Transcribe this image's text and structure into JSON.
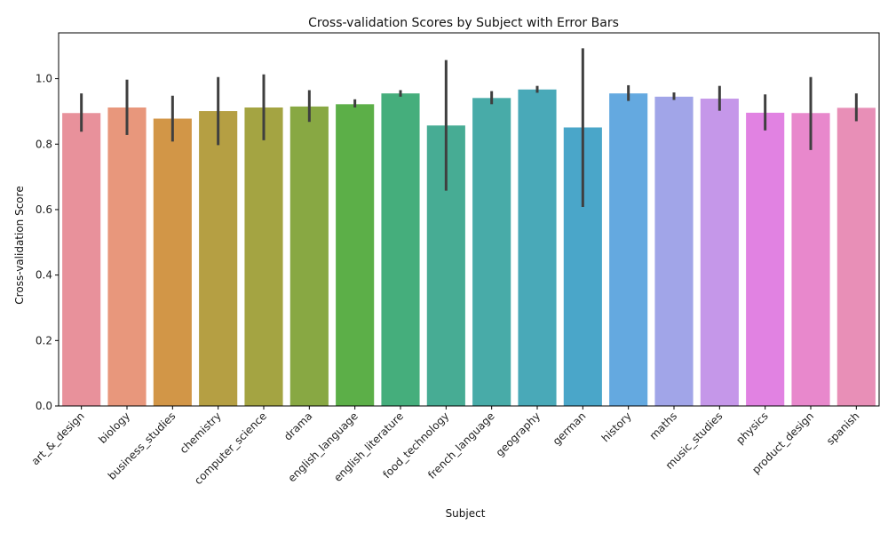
{
  "chart_data": {
    "type": "bar",
    "title": "Cross-validation Scores by Subject with Error Bars",
    "xlabel": "Subject",
    "ylabel": "Cross-validation Score",
    "ylim": [
      0,
      1.14
    ],
    "yticks": [
      0.0,
      0.2,
      0.4,
      0.6,
      0.8,
      1.0
    ],
    "ytick_labels": [
      "0.0",
      "0.2",
      "0.4",
      "0.6",
      "0.8",
      "1.0"
    ],
    "grid": false,
    "categories": [
      "art_&_design",
      "biology",
      "business_studies",
      "chemistry",
      "computer_science",
      "drama",
      "english_language",
      "english_literature",
      "food_technology",
      "french_language",
      "geography",
      "german",
      "history",
      "maths",
      "music_studies",
      "physics",
      "product_design",
      "spanish"
    ],
    "values": [
      0.895,
      0.912,
      0.878,
      0.901,
      0.912,
      0.915,
      0.922,
      0.955,
      0.857,
      0.941,
      0.967,
      0.851,
      0.955,
      0.945,
      0.939,
      0.896,
      0.895,
      0.911
    ],
    "error_low": [
      0.838,
      0.828,
      0.808,
      0.797,
      0.812,
      0.868,
      0.912,
      0.945,
      0.658,
      0.922,
      0.957,
      0.608,
      0.932,
      0.935,
      0.902,
      0.842,
      0.782,
      0.87
    ],
    "error_high": [
      0.955,
      0.997,
      0.948,
      1.005,
      1.013,
      0.965,
      0.937,
      0.965,
      1.057,
      0.962,
      0.978,
      1.093,
      0.98,
      0.958,
      0.978,
      0.952,
      1.005,
      0.955
    ],
    "colors": [
      "#e8919b",
      "#e8977c",
      "#d29647",
      "#b59f43",
      "#a4a442",
      "#88a843",
      "#5caf48",
      "#45ae7c",
      "#47ac94",
      "#48aba8",
      "#49a9b8",
      "#4aa6c9",
      "#64a9e0",
      "#a1a5e8",
      "#c597e9",
      "#e182e2",
      "#e888cc",
      "#e88fb7"
    ],
    "error_color": "#3f3f3f"
  }
}
